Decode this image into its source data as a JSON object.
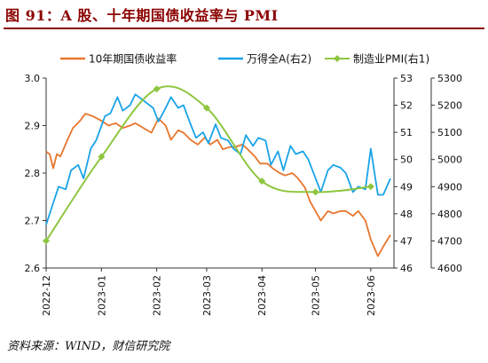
{
  "title": "图 91：A 股、十年期国债收益率与 PMI",
  "source": "资料来源：WIND，财信研究院",
  "colors": {
    "bond": "#e8762d",
    "wind": "#1aa3e8",
    "pmi": "#8ec63f",
    "title": "#8b0000"
  },
  "chart_data": {
    "type": "line",
    "legend_position": "top",
    "grid": false,
    "x_ticks": [
      "2022-12",
      "2023-01",
      "2023-02",
      "2023-03",
      "2023-04",
      "2023-05",
      "2023-06"
    ],
    "axes": {
      "left": {
        "ticks": [
          "2.6",
          "2.7",
          "2.8",
          "2.9",
          "3.0"
        ],
        "range": [
          2.6,
          3.0
        ]
      },
      "right1": {
        "ticks": [
          "46",
          "47",
          "48",
          "49",
          "50",
          "51",
          "52",
          "53"
        ],
        "range": [
          46,
          53
        ]
      },
      "right2": {
        "ticks": [
          "4600",
          "4700",
          "4800",
          "4900",
          "5000",
          "5100",
          "5200",
          "5300"
        ],
        "range": [
          4600,
          5300
        ]
      }
    },
    "series": [
      {
        "name": "10年期国债收益率",
        "axis": "left",
        "marker": "none",
        "x": [
          "2022-12-01",
          "2022-12-03",
          "2022-12-05",
          "2022-12-07",
          "2022-12-09",
          "2022-12-13",
          "2022-12-16",
          "2022-12-20",
          "2022-12-23",
          "2022-12-27",
          "2023-01-01",
          "2023-01-05",
          "2023-01-09",
          "2023-01-13",
          "2023-01-17",
          "2023-01-20",
          "2023-01-29",
          "2023-02-02",
          "2023-02-06",
          "2023-02-09",
          "2023-02-13",
          "2023-02-16",
          "2023-02-20",
          "2023-02-24",
          "2023-02-28",
          "2023-03-03",
          "2023-03-07",
          "2023-03-10",
          "2023-03-14",
          "2023-03-17",
          "2023-03-21",
          "2023-03-24",
          "2023-03-28",
          "2023-03-31",
          "2023-04-04",
          "2023-04-07",
          "2023-04-11",
          "2023-04-14",
          "2023-04-18",
          "2023-04-21",
          "2023-04-25",
          "2023-04-28",
          "2023-05-04",
          "2023-05-08",
          "2023-05-11",
          "2023-05-15",
          "2023-05-18",
          "2023-05-22",
          "2023-05-25",
          "2023-05-29",
          "2023-06-01",
          "2023-06-05",
          "2023-06-08",
          "2023-06-12"
        ],
        "values": [
          2.845,
          2.84,
          2.81,
          2.84,
          2.835,
          2.87,
          2.895,
          2.91,
          2.925,
          2.92,
          2.91,
          2.9,
          2.905,
          2.895,
          2.9,
          2.905,
          2.885,
          2.915,
          2.9,
          2.87,
          2.89,
          2.885,
          2.87,
          2.86,
          2.875,
          2.86,
          2.87,
          2.85,
          2.855,
          2.855,
          2.86,
          2.85,
          2.835,
          2.82,
          2.82,
          2.81,
          2.8,
          2.795,
          2.8,
          2.79,
          2.77,
          2.74,
          2.7,
          2.72,
          2.715,
          2.72,
          2.72,
          2.71,
          2.72,
          2.7,
          2.66,
          2.625,
          2.645,
          2.67
        ]
      },
      {
        "name": "万得全A(右2)",
        "axis": "right2",
        "marker": "none",
        "x": [
          "2022-12-01",
          "2022-12-05",
          "2022-12-08",
          "2022-12-12",
          "2022-12-15",
          "2022-12-19",
          "2022-12-22",
          "2022-12-26",
          "2022-12-29",
          "2023-01-03",
          "2023-01-06",
          "2023-01-10",
          "2023-01-13",
          "2023-01-17",
          "2023-01-20",
          "2023-01-30",
          "2023-02-02",
          "2023-02-06",
          "2023-02-09",
          "2023-02-13",
          "2023-02-16",
          "2023-02-20",
          "2023-02-23",
          "2023-02-27",
          "2023-03-02",
          "2023-03-06",
          "2023-03-09",
          "2023-03-13",
          "2023-03-16",
          "2023-03-20",
          "2023-03-23",
          "2023-03-27",
          "2023-03-30",
          "2023-04-03",
          "2023-04-06",
          "2023-04-10",
          "2023-04-13",
          "2023-04-17",
          "2023-04-20",
          "2023-04-24",
          "2023-04-27",
          "2023-05-04",
          "2023-05-08",
          "2023-05-11",
          "2023-05-15",
          "2023-05-18",
          "2023-05-22",
          "2023-05-25",
          "2023-05-29",
          "2023-06-01",
          "2023-06-05",
          "2023-06-08",
          "2023-06-12"
        ],
        "values": [
          4760,
          4840,
          4900,
          4890,
          4960,
          4980,
          4930,
          5040,
          5070,
          5160,
          5170,
          5230,
          5180,
          5200,
          5240,
          5190,
          5140,
          5190,
          5230,
          5190,
          5200,
          5130,
          5080,
          5100,
          5060,
          5130,
          5080,
          5070,
          5040,
          5020,
          5090,
          5050,
          5080,
          5070,
          4980,
          5030,
          4960,
          5050,
          5020,
          5030,
          5000,
          4880,
          4960,
          4980,
          4970,
          4950,
          4880,
          4900,
          4890,
          5040,
          4870,
          4870,
          4930
        ]
      },
      {
        "name": "制造业PMI(右1)",
        "axis": "right1",
        "marker": "diamond",
        "x": [
          "2022-12-01",
          "2023-01-01",
          "2023-02-01",
          "2023-03-01",
          "2023-04-01",
          "2023-05-01",
          "2023-06-01"
        ],
        "values": [
          47.0,
          50.1,
          52.6,
          51.9,
          49.2,
          48.8,
          49.0
        ]
      }
    ]
  }
}
